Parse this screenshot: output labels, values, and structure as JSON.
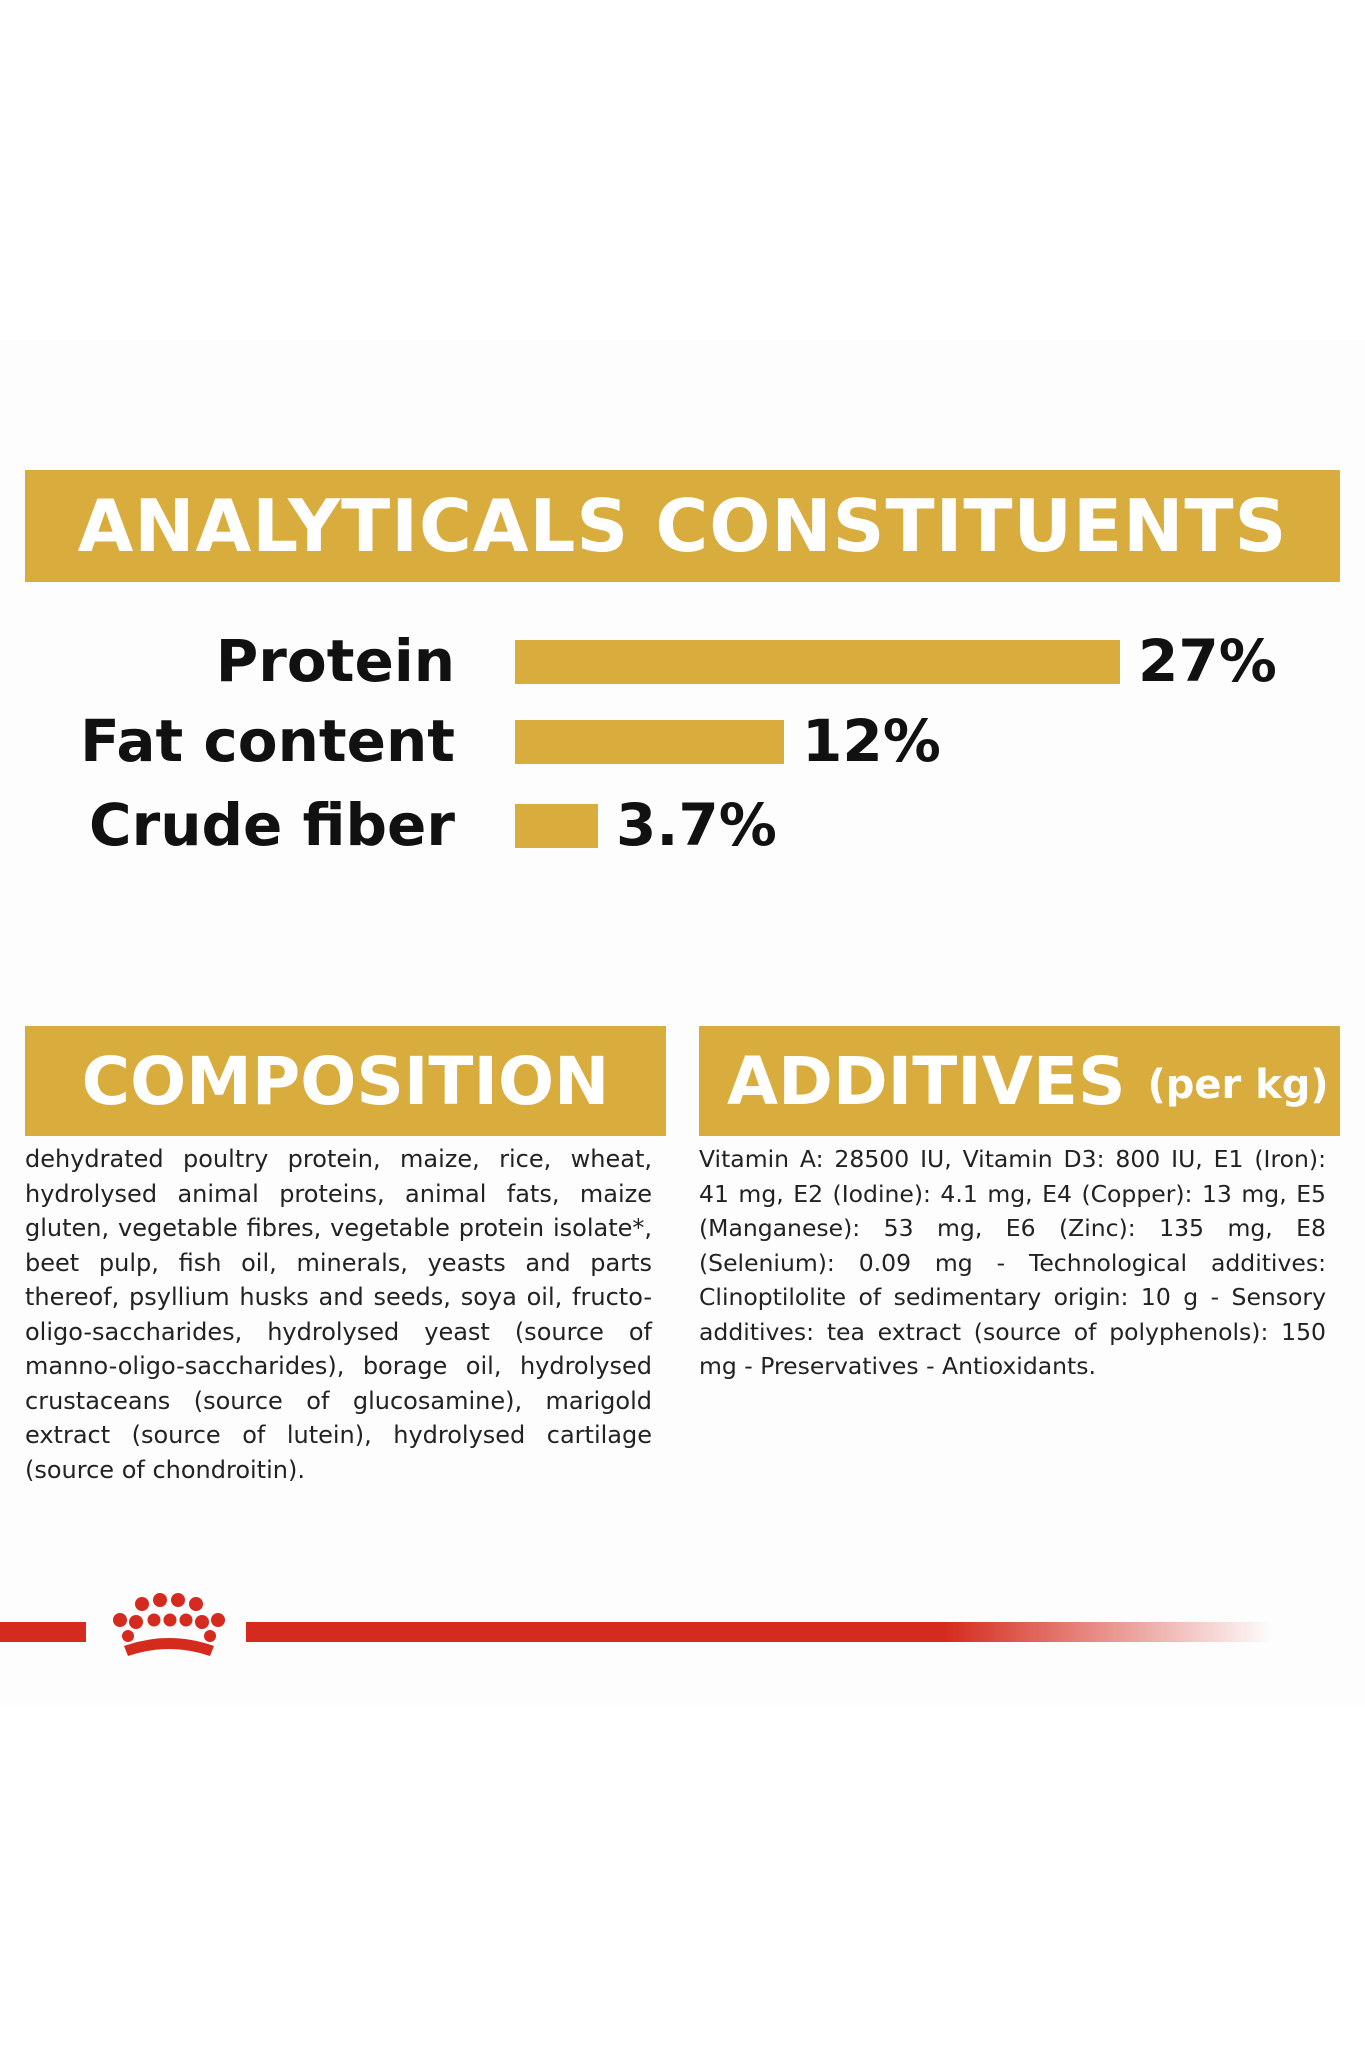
{
  "analyticals": {
    "title": "ANALYTICALS CONSTITUENTS",
    "rows": [
      {
        "label": "Protein",
        "value_text": "27%",
        "value": 27
      },
      {
        "label": "Fat content",
        "value_text": "12%",
        "value": 12
      },
      {
        "label": "Crude fiber",
        "value_text": "3.7%",
        "value": 3.7
      }
    ]
  },
  "composition": {
    "title": "COMPOSITION",
    "text": "dehydrated poultry protein, maize, rice, wheat, hydrolysed animal proteins, animal fats, maize gluten, vegetable fibres, vegetable protein isolate*, beet pulp, fish oil, minerals, yeasts and parts thereof, psyllium husks and seeds, soya oil, fructo-oligo-saccharides, hydrolysed yeast (source of manno-oligo-saccharides), borage oil, hydrolysed crustaceans (source of glucosamine), marigold extract (source of lutein), hydrolysed cartilage (source of chondroitin)."
  },
  "additives": {
    "title": "ADDITIVES",
    "title_suffix": "(per kg)",
    "text": "Vitamin A: 28500 IU, Vitamin D3: 800 IU, E1 (Iron): 41 mg, E2 (Iodine): 4.1 mg, E4 (Copper): 13 mg, E5 (Manganese): 53 mg, E6 (Zinc): 135 mg, E8 (Selenium): 0.09 mg - Technological additives: Clinoptilolite of sedimentary origin: 10 g - Sensory additives: tea extract (source of polyphenols): 150 mg - Preservatives - Antioxidants."
  },
  "colors": {
    "gold": "#d8ad3e",
    "brand_red": "#d52b1e",
    "text": "#111111"
  },
  "icons": {
    "logo": "royal-canin-crown-icon"
  }
}
